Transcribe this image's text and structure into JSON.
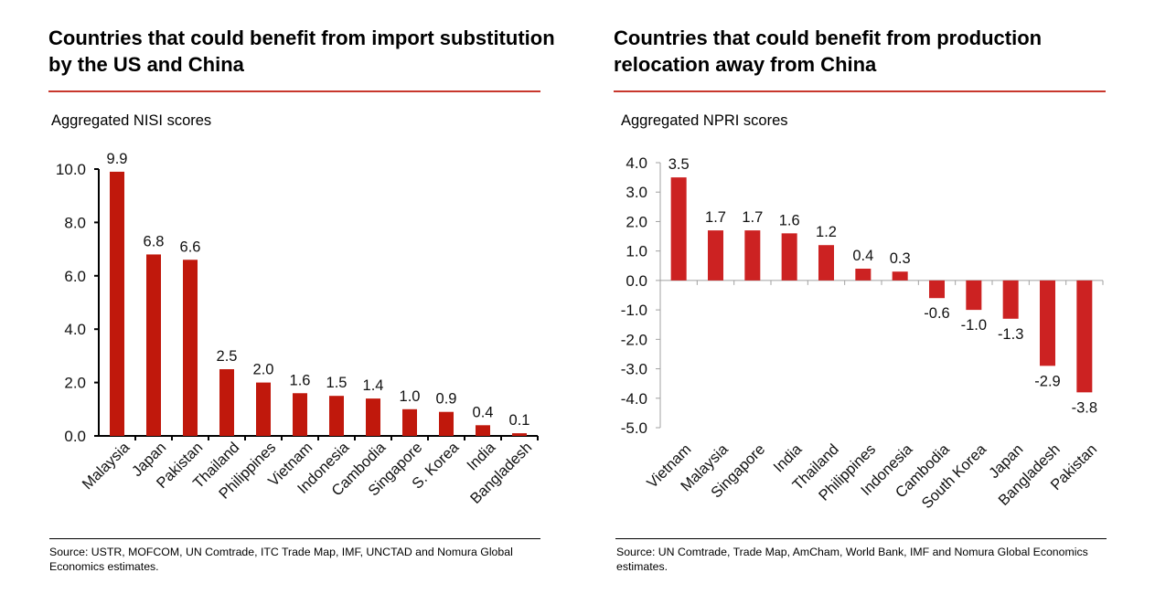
{
  "colors": {
    "bar_left": "#c0180c",
    "bar_right": "#cc2222",
    "accent_rule": "#c8372d",
    "axis_left": "#000000",
    "axis_right": "#a0a0a0"
  },
  "panels": [
    {
      "title": "Countries that could benefit from import substitution by the US and China",
      "subtitle": "Aggregated NISI scores",
      "source": "Source: USTR, MOFCOM, UN Comtrade, ITC Trade Map, IMF, UNCTAD and Nomura Global Economics estimates."
    },
    {
      "title": "Countries that could benefit from production relocation away from China",
      "subtitle": "Aggregated NPRI scores",
      "source": "Source: UN Comtrade, Trade Map, AmCham, World Bank, IMF and Nomura Global Economics estimates."
    }
  ],
  "chart_data": [
    {
      "type": "bar",
      "title": "Countries that could benefit from import substitution by the US and China",
      "ylabel": "Aggregated NISI scores",
      "xlabel": "",
      "categories": [
        "Malaysia",
        "Japan",
        "Pakistan",
        "Thailand",
        "Philippines",
        "Vietnam",
        "Indonesia",
        "Cambodia",
        "Singapore",
        "S. Korea",
        "India",
        "Bangladesh"
      ],
      "values": [
        9.9,
        6.8,
        6.6,
        2.5,
        2.0,
        1.6,
        1.5,
        1.4,
        1.0,
        0.9,
        0.4,
        0.1
      ],
      "data_labels": [
        "9.9",
        "6.8",
        "6.6",
        "2.5",
        "2.0",
        "1.6",
        "1.5",
        "1.4",
        "1.0",
        "0.9",
        "0.4",
        "0.1"
      ],
      "ylim": [
        0,
        10
      ],
      "yticks": [
        0,
        2,
        4,
        6,
        8,
        10
      ],
      "ytick_labels": [
        "0.0",
        "2.0",
        "4.0",
        "6.0",
        "8.0",
        "10.0"
      ],
      "grid": false,
      "legend": "none"
    },
    {
      "type": "bar",
      "title": "Countries that could benefit from production relocation away from China",
      "ylabel": "Aggregated NPRI scores",
      "xlabel": "",
      "categories": [
        "Vietnam",
        "Malaysia",
        "Singapore",
        "India",
        "Thailand",
        "Philippines",
        "Indonesia",
        "Cambodia",
        "South Korea",
        "Japan",
        "Bangladesh",
        "Pakistan"
      ],
      "values": [
        3.5,
        1.7,
        1.7,
        1.6,
        1.2,
        0.4,
        0.3,
        -0.6,
        -1.0,
        -1.3,
        -2.9,
        -3.8
      ],
      "data_labels": [
        "3.5",
        "1.7",
        "1.7",
        "1.6",
        "1.2",
        "0.4",
        "0.3",
        "-0.6",
        "-1.0",
        "-1.3",
        "-2.9",
        "-3.8"
      ],
      "ylim": [
        -5,
        4
      ],
      "yticks": [
        -5,
        -4,
        -3,
        -2,
        -1,
        0,
        1,
        2,
        3,
        4
      ],
      "ytick_labels": [
        "-5.0",
        "-4.0",
        "-3.0",
        "-2.0",
        "-1.0",
        "0.0",
        "1.0",
        "2.0",
        "3.0",
        "4.0"
      ],
      "grid": false,
      "legend": "none"
    }
  ]
}
